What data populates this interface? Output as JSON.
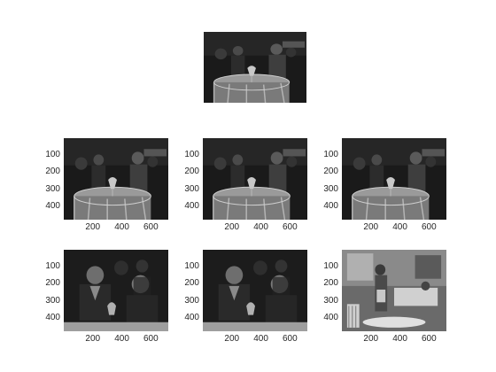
{
  "figure": {
    "panels": [
      {
        "id": "top",
        "has_axes": false,
        "scene": "table-scene"
      },
      {
        "id": "r2c1",
        "has_axes": true,
        "scene": "table-scene"
      },
      {
        "id": "r2c2",
        "has_axes": true,
        "scene": "table-scene"
      },
      {
        "id": "r2c3",
        "has_axes": true,
        "scene": "table-scene"
      },
      {
        "id": "r3c1",
        "has_axes": true,
        "scene": "closeup-couple"
      },
      {
        "id": "r3c2",
        "has_axes": true,
        "scene": "closeup-couple"
      },
      {
        "id": "r3c3",
        "has_axes": true,
        "scene": "bright-room"
      }
    ],
    "y_ticks": [
      "100",
      "200",
      "300",
      "400"
    ],
    "x_ticks": [
      "200",
      "400",
      "600"
    ]
  }
}
